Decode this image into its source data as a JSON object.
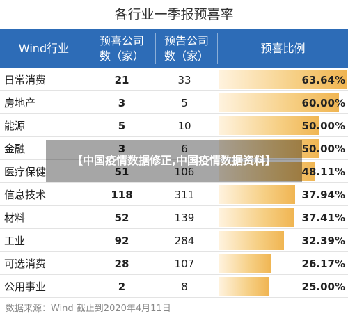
{
  "title": "各行业一季报预喜率",
  "headers": {
    "industry": "Wind行业",
    "positive_line1": "预喜公司",
    "positive_line2": "数（家）",
    "forecast_line1": "预告公司",
    "forecast_line2": "数（家）",
    "ratio": "预喜比例"
  },
  "chart_data": {
    "type": "table",
    "columns": [
      "Wind行业",
      "预喜公司数（家）",
      "预告公司数（家）",
      "预喜比例"
    ],
    "rows": [
      {
        "industry": "日常消费",
        "positive": "21",
        "forecast": "33",
        "ratio_text": "63.64%",
        "ratio": 63.64
      },
      {
        "industry": "房地产",
        "positive": "3",
        "forecast": "5",
        "ratio_text": "60.00%",
        "ratio": 60.0
      },
      {
        "industry": "能源",
        "positive": "5",
        "forecast": "10",
        "ratio_text": "50.00%",
        "ratio": 50.0
      },
      {
        "industry": "金融",
        "positive": "3",
        "forecast": "6",
        "ratio_text": "50.00%",
        "ratio": 50.0
      },
      {
        "industry": "医疗保健",
        "positive": "51",
        "forecast": "106",
        "ratio_text": "48.11%",
        "ratio": 48.11
      },
      {
        "industry": "信息技术",
        "positive": "118",
        "forecast": "311",
        "ratio_text": "37.94%",
        "ratio": 37.94
      },
      {
        "industry": "材料",
        "positive": "52",
        "forecast": "139",
        "ratio_text": "37.41%",
        "ratio": 37.41
      },
      {
        "industry": "工业",
        "positive": "92",
        "forecast": "284",
        "ratio_text": "32.39%",
        "ratio": 32.39
      },
      {
        "industry": "可选消费",
        "positive": "28",
        "forecast": "107",
        "ratio_text": "26.17%",
        "ratio": 26.17
      },
      {
        "industry": "公用事业",
        "positive": "2",
        "forecast": "8",
        "ratio_text": "25.00%",
        "ratio": 25.0
      }
    ]
  },
  "source": "数据来源：Wind 截止到2020年4月11日",
  "overlay_text": "【中国疫情数据修正,中国疫情数据资料】",
  "colors": {
    "header_bg": "#2d6cb7",
    "bar_start": "#fff3df",
    "bar_end": "#f0b552"
  }
}
